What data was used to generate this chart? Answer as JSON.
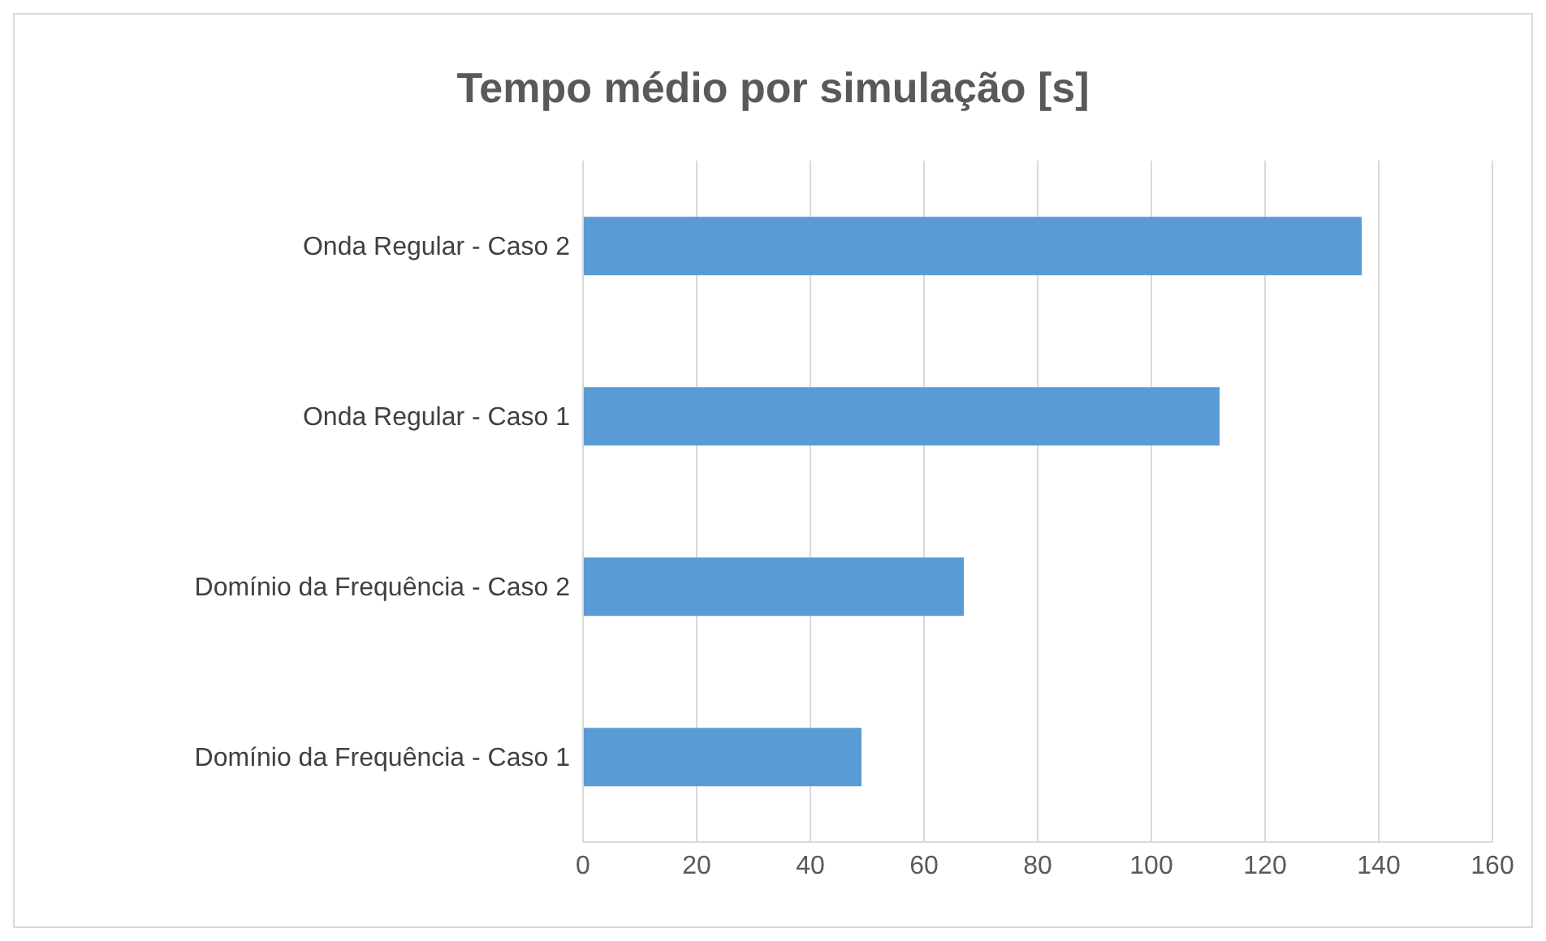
{
  "chart_data": {
    "type": "bar",
    "orientation": "horizontal",
    "title": "Tempo médio por simulação [s]",
    "categories": [
      "Onda Regular - Caso 2",
      "Onda Regular - Caso 1",
      "Domínio da Frequência - Caso 2",
      "Domínio da Frequência - Caso 1"
    ],
    "values": [
      137,
      112,
      67,
      49
    ],
    "color": "#5b9bd5",
    "xlim": [
      0,
      160
    ],
    "xticks": [
      0,
      20,
      40,
      60,
      80,
      100,
      120,
      140,
      160
    ],
    "grid": "x"
  }
}
